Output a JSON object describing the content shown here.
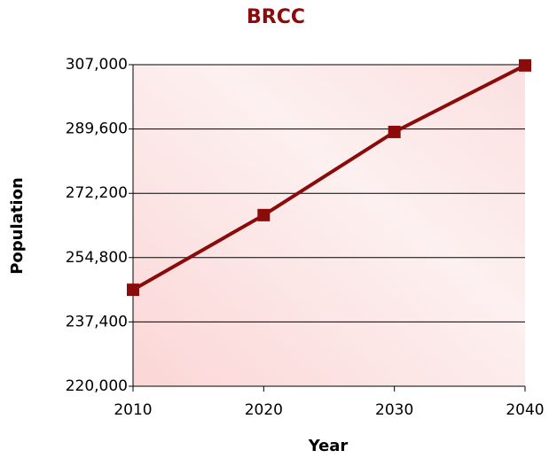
{
  "chart_data": {
    "type": "line",
    "title": "BRCC",
    "x_label": "Year",
    "y_label": "Population",
    "x": [
      2010,
      2020,
      2030,
      2040
    ],
    "series": [
      {
        "name": "Population",
        "color": "#8b0a0a",
        "values": [
          246100,
          266300,
          288800,
          306800
        ]
      }
    ],
    "xlim": [
      2010,
      2040
    ],
    "xticks": [
      2010,
      2020,
      2030,
      2040
    ],
    "ylim": [
      220000,
      307000
    ],
    "yticks": [
      {
        "value": 220000,
        "label": "220,000"
      },
      {
        "value": 237400,
        "label": "237,400"
      },
      {
        "value": 254800,
        "label": "254,800"
      },
      {
        "value": 272200,
        "label": "272,200"
      },
      {
        "value": 289600,
        "label": "289,600"
      },
      {
        "value": 307000,
        "label": "307,000"
      }
    ],
    "grid": true
  }
}
